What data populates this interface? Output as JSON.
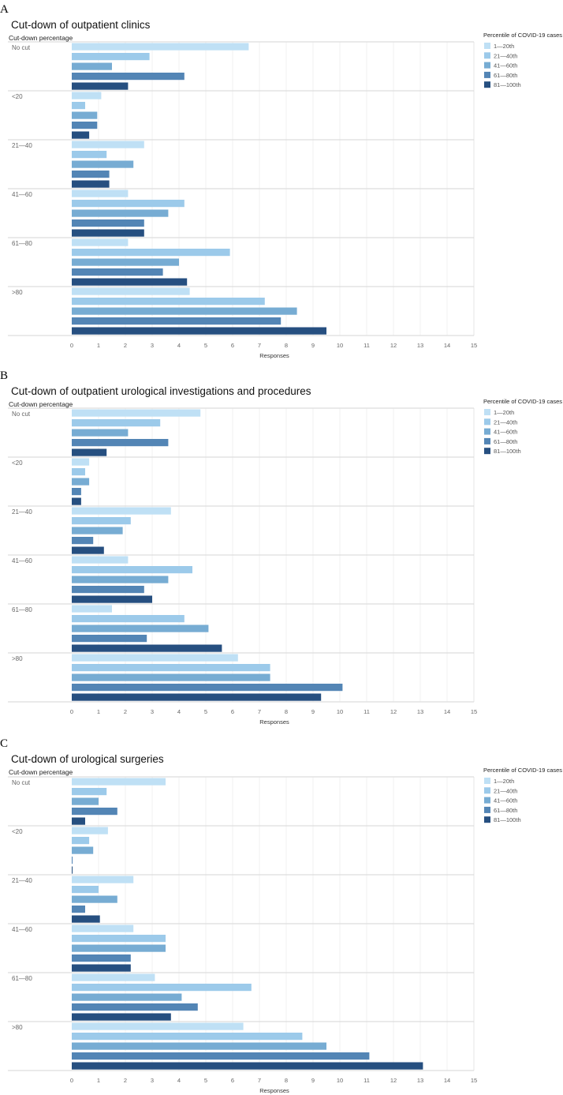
{
  "legend": {
    "title": "Percentile of COVID-19 cases",
    "entries": [
      "1—20th",
      "21—40th",
      "41—60th",
      "61—80th",
      "81—100th"
    ],
    "colors": [
      "#bfe0f5",
      "#9ccaea",
      "#77acd3",
      "#5385b5",
      "#264f80"
    ]
  },
  "chart_data": [
    {
      "panel_letter": "A",
      "type": "bar",
      "orientation": "horizontal",
      "title": "Cut-down of outpatient clinics",
      "ylabel": "Cut-down percentage",
      "xlabel": "Responses",
      "xlim": [
        0,
        15
      ],
      "xticks": [
        0,
        1,
        2,
        3,
        4,
        5,
        6,
        7,
        8,
        9,
        10,
        11,
        12,
        13,
        14,
        15
      ],
      "categories": [
        "No cut",
        "<20",
        "21—40",
        "41—60",
        "61—80",
        ">80"
      ],
      "legend_visible": true,
      "series": [
        {
          "name": "1—20th",
          "values": [
            6.6,
            1.1,
            2.7,
            2.1,
            2.1,
            4.4
          ]
        },
        {
          "name": "21—40th",
          "values": [
            2.9,
            0.5,
            1.3,
            4.2,
            5.9,
            7.2
          ]
        },
        {
          "name": "41—60th",
          "values": [
            1.5,
            0.95,
            2.3,
            3.6,
            4.0,
            8.4
          ]
        },
        {
          "name": "61—80th",
          "values": [
            4.2,
            0.95,
            1.4,
            2.7,
            3.4,
            7.8
          ]
        },
        {
          "name": "81—100th",
          "values": [
            2.1,
            0.65,
            1.4,
            2.7,
            4.3,
            9.5
          ]
        }
      ]
    },
    {
      "panel_letter": "B",
      "type": "bar",
      "orientation": "horizontal",
      "title": "Cut-down of outpatient urological investigations and procedures",
      "ylabel": "Cut-down percentage",
      "xlabel": "Responses",
      "xlim": [
        0,
        15
      ],
      "xticks": [
        0,
        1,
        2,
        3,
        4,
        5,
        6,
        7,
        8,
        9,
        10,
        11,
        12,
        13,
        14,
        15
      ],
      "categories": [
        "No cut",
        "<20",
        "21—40",
        "41—60",
        "61—80",
        ">80"
      ],
      "legend_visible": true,
      "series": [
        {
          "name": "1—20th",
          "values": [
            4.8,
            0.65,
            3.7,
            2.1,
            1.5,
            6.2
          ]
        },
        {
          "name": "21—40th",
          "values": [
            3.3,
            0.5,
            2.2,
            4.5,
            4.2,
            7.4
          ]
        },
        {
          "name": "41—60th",
          "values": [
            2.1,
            0.65,
            1.9,
            3.6,
            5.1,
            7.4
          ]
        },
        {
          "name": "61—80th",
          "values": [
            3.6,
            0.35,
            0.8,
            2.7,
            2.8,
            10.1
          ]
        },
        {
          "name": "81—100th",
          "values": [
            1.3,
            0.35,
            1.2,
            3.0,
            5.6,
            9.3
          ]
        }
      ]
    },
    {
      "panel_letter": "C",
      "type": "bar",
      "orientation": "horizontal",
      "title": "Cut-down of urological surgeries",
      "ylabel": "Cut-down percentage",
      "xlabel": "Responses",
      "xlim": [
        0,
        15
      ],
      "xticks": [
        0,
        1,
        2,
        3,
        4,
        5,
        6,
        7,
        8,
        9,
        10,
        11,
        12,
        13,
        14,
        15
      ],
      "categories": [
        "No cut",
        "<20",
        "21—40",
        "41—60",
        "61—80",
        ">80"
      ],
      "legend_visible": true,
      "series": [
        {
          "name": "1—20th",
          "values": [
            3.5,
            1.35,
            2.3,
            2.3,
            3.1,
            6.4
          ]
        },
        {
          "name": "21—40th",
          "values": [
            1.3,
            0.65,
            1.0,
            3.5,
            6.7,
            8.6
          ]
        },
        {
          "name": "41—60th",
          "values": [
            1.0,
            0.8,
            1.7,
            3.5,
            4.1,
            9.5
          ]
        },
        {
          "name": "61—80th",
          "values": [
            1.7,
            0.03,
            0.5,
            2.2,
            4.7,
            11.1
          ]
        },
        {
          "name": "81—100th",
          "values": [
            0.5,
            0.03,
            1.05,
            2.2,
            3.7,
            13.1
          ]
        }
      ]
    }
  ]
}
